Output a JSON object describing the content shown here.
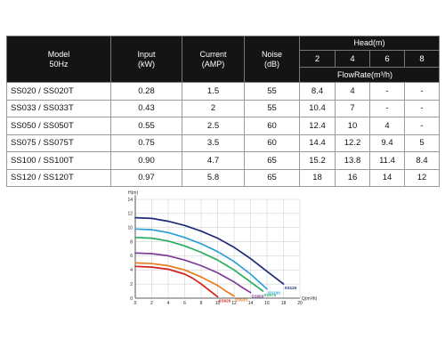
{
  "table": {
    "model_label_1": "Model",
    "model_label_2": "50Hz",
    "input_label_1": "Input",
    "input_label_2": "(kW)",
    "current_label_1": "Current",
    "current_label_2": "(AMP)",
    "noise_label_1": "Noise",
    "noise_label_2": "(dB)",
    "head_label": "Head(m)",
    "head_values": [
      "2",
      "4",
      "6",
      "8"
    ],
    "flow_label": "FlowRate(m³/h)",
    "rows": [
      {
        "model": "SS020 / SS020T",
        "input": "0.28",
        "current": "1.5",
        "noise": "55",
        "flows": [
          "8.4",
          "4",
          "-",
          "-"
        ]
      },
      {
        "model": "SS033 / SS033T",
        "input": "0.43",
        "current": "2",
        "noise": "55",
        "flows": [
          "10.4",
          "7",
          "-",
          "-"
        ]
      },
      {
        "model": "SS050 / SS050T",
        "input": "0.55",
        "current": "2.5",
        "noise": "60",
        "flows": [
          "12.4",
          "10",
          "4",
          "-"
        ]
      },
      {
        "model": "SS075 / SS075T",
        "input": "0.75",
        "current": "3.5",
        "noise": "60",
        "flows": [
          "14.4",
          "12.2",
          "9.4",
          "5"
        ]
      },
      {
        "model": "SS100 / SS100T",
        "input": "0.90",
        "current": "4.7",
        "noise": "65",
        "flows": [
          "15.2",
          "13.8",
          "11.4",
          "8.4"
        ]
      },
      {
        "model": "SS120 / SS120T",
        "input": "0.97",
        "current": "5.8",
        "noise": "65",
        "flows": [
          "18",
          "16",
          "14",
          "12"
        ]
      }
    ]
  },
  "chart_data": {
    "type": "line",
    "ylabel": "H(m)",
    "xlabel": "Q(m³/h)",
    "xlim": [
      0,
      20
    ],
    "ylim": [
      0,
      14
    ],
    "x_ticks": [
      0,
      2,
      4,
      6,
      8,
      10,
      12,
      14,
      16,
      18,
      20
    ],
    "y_ticks": [
      0,
      2,
      4,
      6,
      8,
      10,
      12,
      14
    ],
    "grid": true,
    "series": [
      {
        "name": "SS020",
        "color": "#d42020",
        "x": [
          0,
          2,
          4,
          6,
          7,
          8,
          9,
          10
        ],
        "y": [
          4.5,
          4.4,
          4.1,
          3.4,
          2.8,
          2.0,
          1.1,
          0.2
        ]
      },
      {
        "name": "SS033",
        "color": "#e67e22",
        "x": [
          0,
          2,
          4,
          6,
          8,
          10,
          11,
          12
        ],
        "y": [
          5.0,
          4.9,
          4.6,
          4.0,
          3.0,
          1.8,
          1.0,
          0.3
        ]
      },
      {
        "name": "SS050",
        "color": "#7d3c98",
        "x": [
          0,
          2,
          4,
          6,
          8,
          10,
          12,
          13,
          14
        ],
        "y": [
          6.4,
          6.3,
          6.0,
          5.4,
          4.6,
          3.6,
          2.3,
          1.5,
          0.8
        ]
      },
      {
        "name": "SS075",
        "color": "#27ae60",
        "x": [
          0,
          2,
          4,
          6,
          8,
          10,
          12,
          14,
          15.5
        ],
        "y": [
          8.6,
          8.5,
          8.1,
          7.4,
          6.5,
          5.4,
          4.0,
          2.3,
          1.0
        ]
      },
      {
        "name": "SS100",
        "color": "#2e9fd8",
        "x": [
          0,
          2,
          4,
          6,
          8,
          10,
          12,
          14,
          16
        ],
        "y": [
          9.8,
          9.7,
          9.3,
          8.6,
          7.7,
          6.6,
          5.2,
          3.4,
          1.3
        ]
      },
      {
        "name": "SS120",
        "color": "#1f2a78",
        "x": [
          0,
          2,
          4,
          6,
          8,
          10,
          12,
          14,
          16,
          18
        ],
        "y": [
          11.4,
          11.3,
          10.9,
          10.3,
          9.5,
          8.5,
          7.2,
          5.6,
          3.8,
          2.0
        ]
      }
    ]
  }
}
